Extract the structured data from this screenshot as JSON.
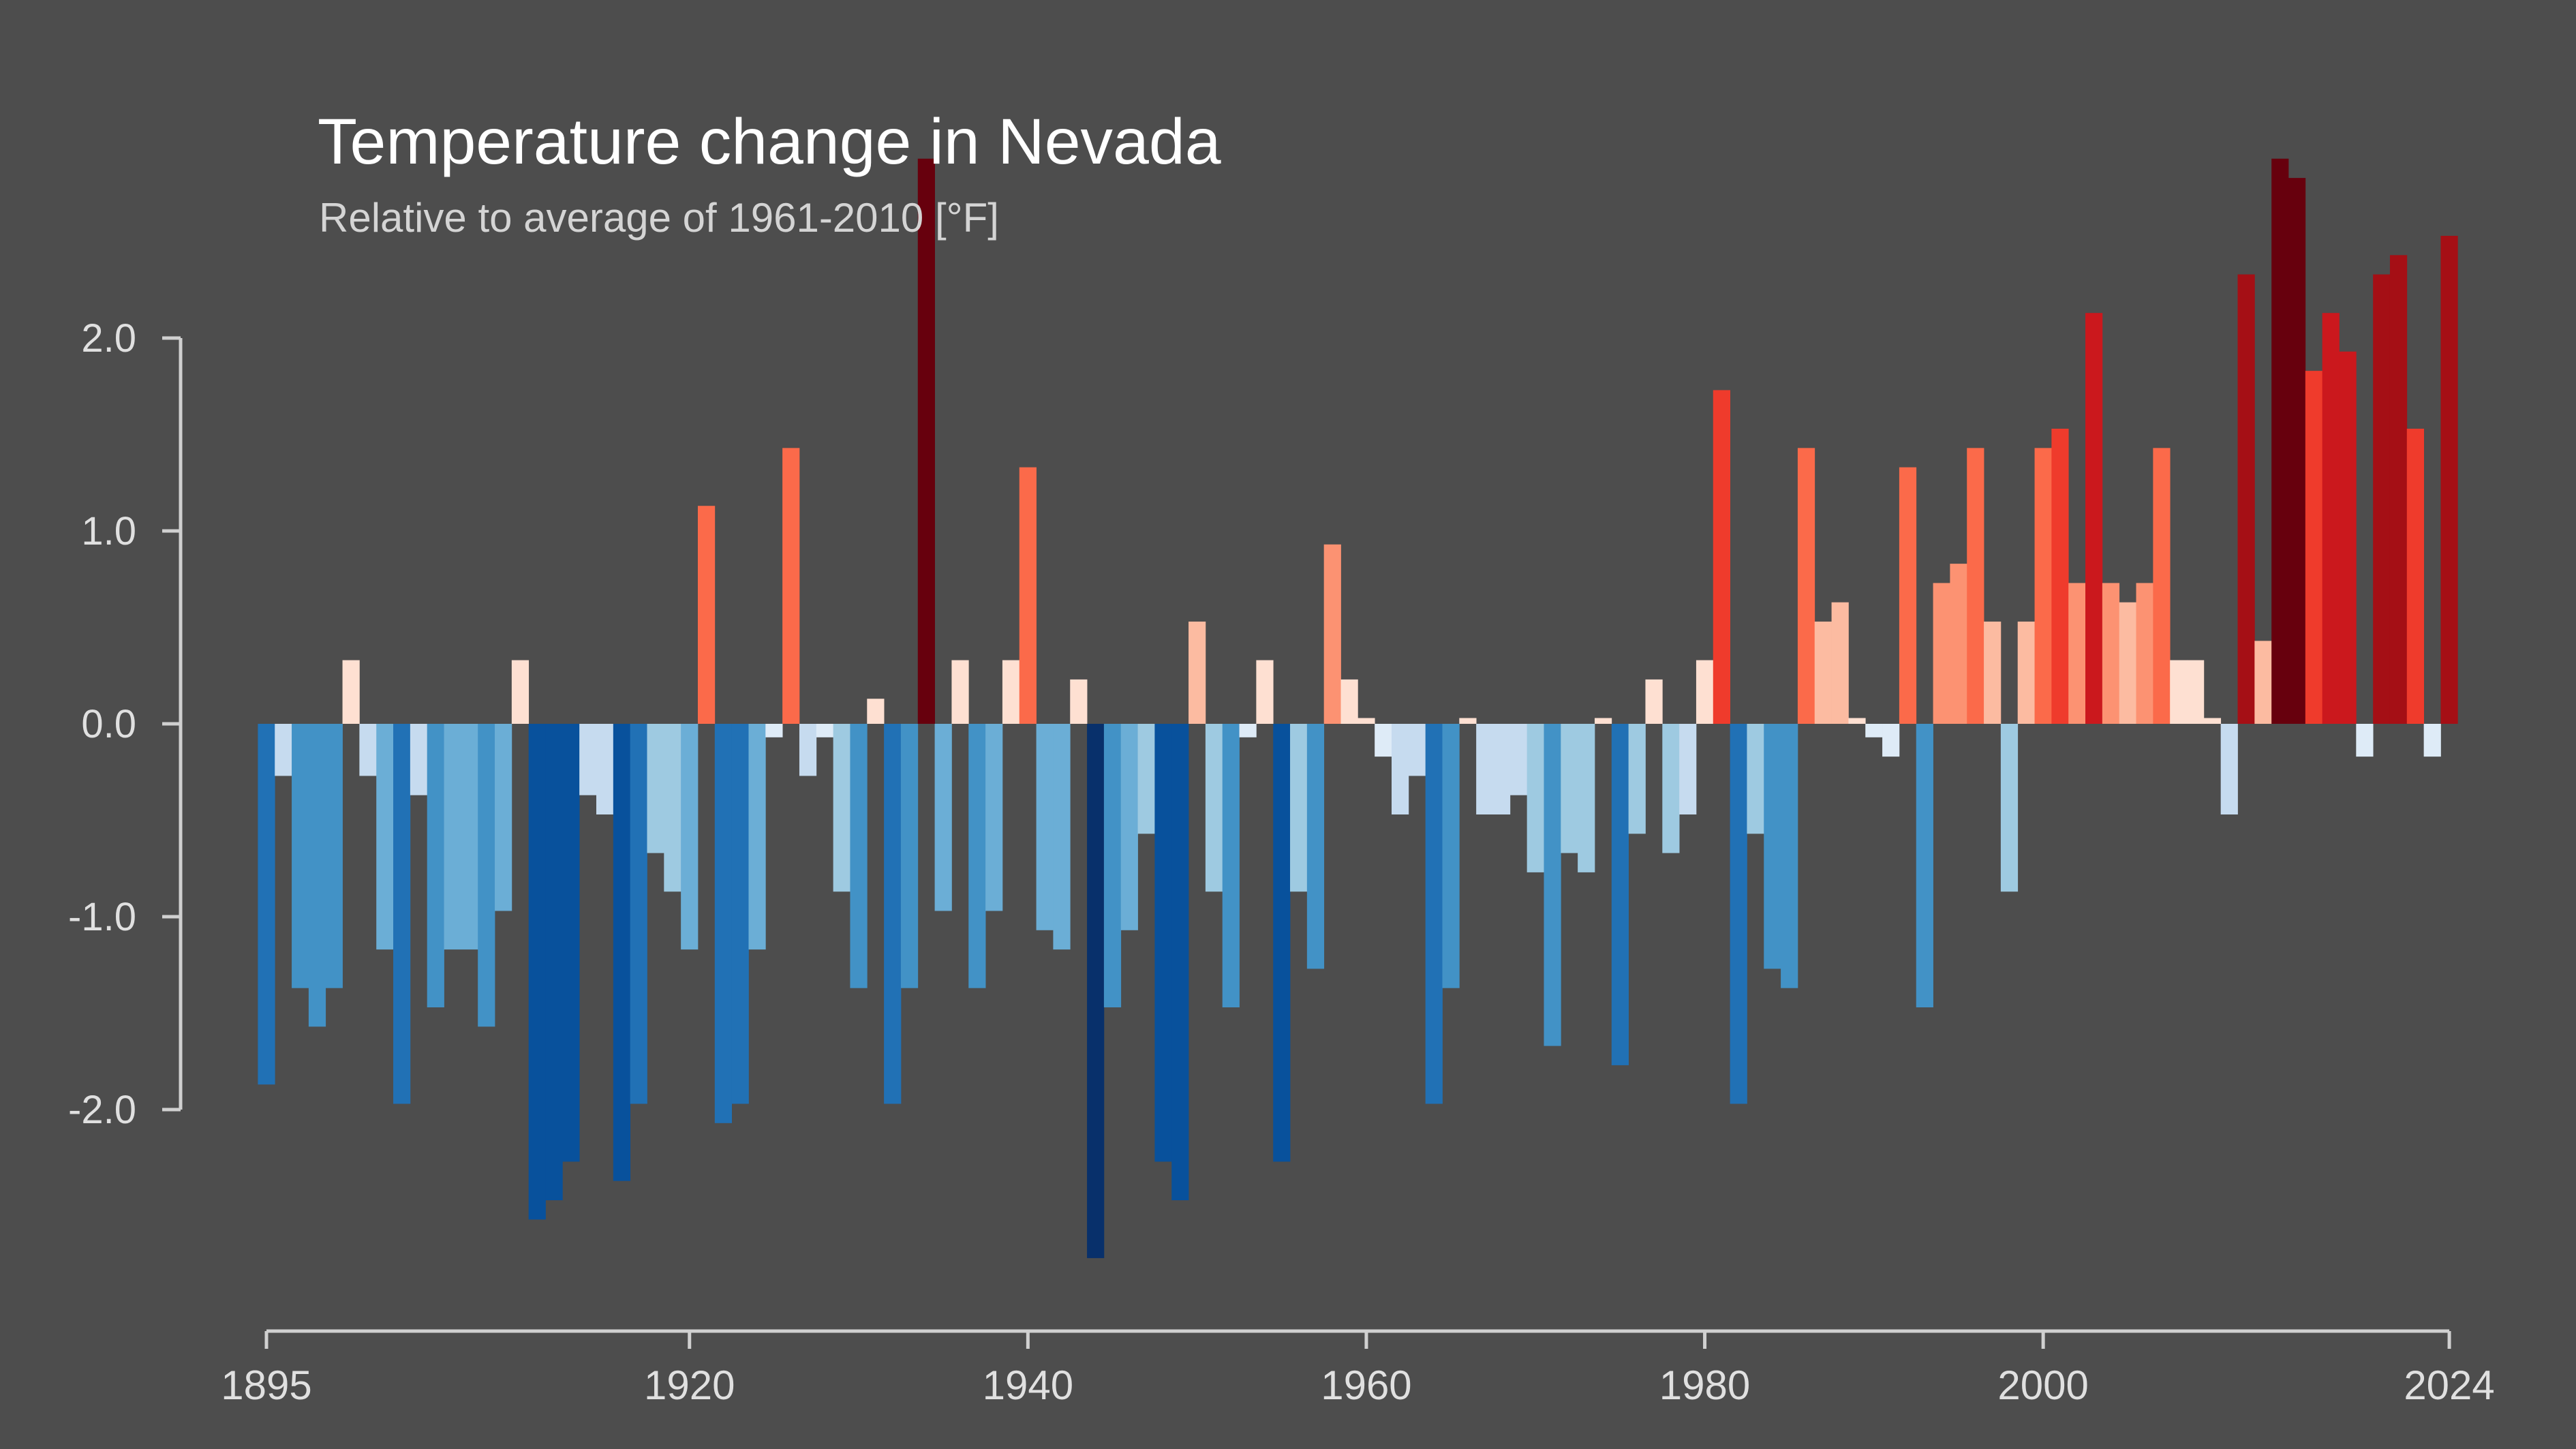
{
  "chart_data": {
    "type": "bar",
    "title": "Temperature change in Nevada",
    "subtitle": "Relative to average of 1961-2010  [°F]",
    "xlabel": "",
    "ylabel": "",
    "xlim": [
      1895,
      2024
    ],
    "ylim": [
      -3.2,
      3.0
    ],
    "grid": false,
    "x_ticks": [
      "1895",
      "1920",
      "1940",
      "1960",
      "1980",
      "2000",
      "2024"
    ],
    "y_ticks": [
      "2.0",
      "1.0",
      "0.0",
      "-1.0",
      "-2.0"
    ],
    "colors": {
      "background": "#4d4d4d",
      "axis": "#d0d0d0",
      "cold_scale": [
        "#08306b",
        "#08519c",
        "#2171b5",
        "#4292c6",
        "#6baed6",
        "#9ecae1",
        "#c6dbef",
        "#deebf7"
      ],
      "warm_scale": [
        "#fee0d2",
        "#fcbba1",
        "#fc9272",
        "#fb6a4a",
        "#ef3b2c",
        "#cb181d",
        "#a50f15",
        "#67000d"
      ]
    },
    "years": [
      1895,
      1896,
      1897,
      1898,
      1899,
      1900,
      1901,
      1902,
      1903,
      1904,
      1905,
      1906,
      1907,
      1908,
      1909,
      1910,
      1911,
      1912,
      1913,
      1914,
      1915,
      1916,
      1917,
      1918,
      1919,
      1920,
      1921,
      1922,
      1923,
      1924,
      1925,
      1926,
      1927,
      1928,
      1929,
      1930,
      1931,
      1932,
      1933,
      1934,
      1935,
      1936,
      1937,
      1938,
      1939,
      1940,
      1941,
      1942,
      1943,
      1944,
      1945,
      1946,
      1947,
      1948,
      1949,
      1950,
      1951,
      1952,
      1953,
      1954,
      1955,
      1956,
      1957,
      1958,
      1959,
      1960,
      1961,
      1962,
      1963,
      1964,
      1965,
      1966,
      1967,
      1968,
      1969,
      1970,
      1971,
      1972,
      1973,
      1974,
      1975,
      1976,
      1977,
      1978,
      1979,
      1980,
      1981,
      1982,
      1983,
      1984,
      1985,
      1986,
      1987,
      1988,
      1989,
      1990,
      1991,
      1992,
      1993,
      1994,
      1995,
      1996,
      1997,
      1998,
      1999,
      2000,
      2001,
      2002,
      2003,
      2004,
      2005,
      2006,
      2007,
      2008,
      2009,
      2010,
      2011,
      2012,
      2013,
      2014,
      2015,
      2016,
      2017,
      2018,
      2019,
      2020,
      2021,
      2022,
      2023,
      2024
    ],
    "values": [
      -1.87,
      -0.27,
      -1.37,
      -1.57,
      -1.37,
      0.33,
      -0.27,
      -1.17,
      -1.97,
      -0.37,
      -1.47,
      -1.17,
      -1.17,
      -1.57,
      -0.97,
      0.33,
      -2.57,
      -2.47,
      -2.27,
      -0.37,
      -0.47,
      -2.37,
      -1.97,
      -0.67,
      -0.87,
      -1.17,
      1.13,
      -2.07,
      -1.97,
      -1.17,
      -0.07,
      1.43,
      -0.27,
      -0.07,
      -0.87,
      -1.37,
      0.13,
      -1.97,
      -1.37,
      2.93,
      -0.97,
      0.33,
      -1.37,
      -0.97,
      0.33,
      1.33,
      -1.07,
      -1.17,
      0.23,
      -2.77,
      -1.47,
      -1.07,
      -0.57,
      -2.27,
      -2.47,
      0.53,
      -0.87,
      -1.47,
      -0.07,
      0.33,
      -2.27,
      -0.87,
      -1.27,
      0.93,
      0.23,
      0.03,
      -0.17,
      -0.47,
      -0.27,
      -1.97,
      -1.37,
      0.03,
      -0.47,
      -0.47,
      -0.37,
      -0.77,
      -1.67,
      -0.67,
      -0.77,
      0.03,
      -1.77,
      -0.57,
      0.23,
      -0.67,
      -0.47,
      0.33,
      1.73,
      -1.97,
      -0.57,
      -1.27,
      -1.37,
      1.43,
      0.53,
      0.63,
      0.03,
      -0.07,
      -0.17,
      1.33,
      -1.47,
      0.73,
      0.83,
      1.43,
      0.53,
      -0.87,
      0.53,
      1.43,
      1.53,
      0.73,
      2.13,
      0.73,
      0.63,
      0.73,
      1.43,
      0.33,
      0.33,
      0.03,
      -0.47,
      2.33,
      0.43,
      2.93,
      2.83,
      1.83,
      2.13,
      1.93,
      -0.17,
      2.33,
      2.43,
      1.53,
      -0.17,
      2.53
    ]
  }
}
